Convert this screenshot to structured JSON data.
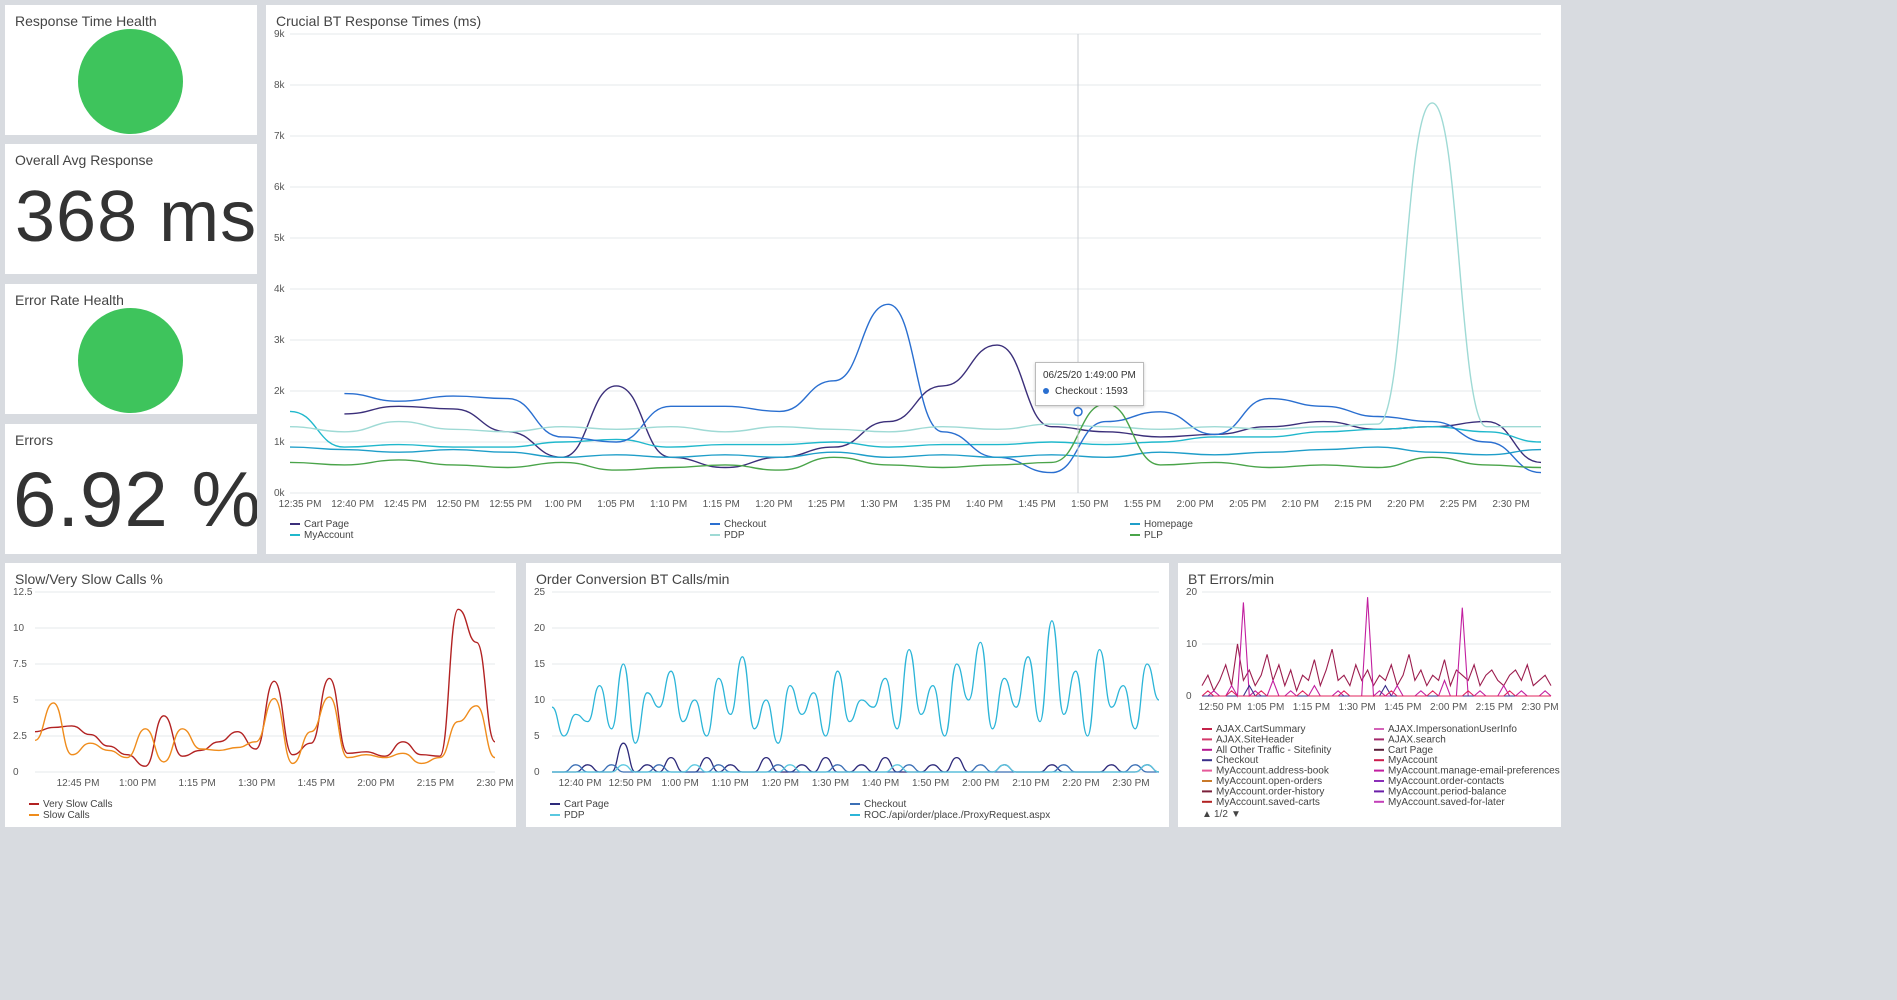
{
  "panels": {
    "response_time_health": {
      "title": "Response Time Health",
      "status_color": "#3ec45c"
    },
    "overall_avg_response": {
      "title": "Overall Avg Response",
      "value": "368 ms"
    },
    "error_rate_health": {
      "title": "Error Rate Health",
      "status_color": "#3ec45c"
    },
    "errors": {
      "title": "Errors",
      "value": "6.92 %"
    }
  },
  "chart_data": [
    {
      "id": "crucial",
      "type": "line",
      "title": "Crucial BT Response Times (ms)",
      "y_ticks": [
        "0k",
        "1k",
        "2k",
        "3k",
        "4k",
        "5k",
        "6k",
        "7k",
        "8k",
        "9k"
      ],
      "ylim": [
        0,
        9000
      ],
      "x_ticks": [
        "12:35 PM",
        "12:40 PM",
        "12:45 PM",
        "12:50 PM",
        "12:55 PM",
        "1:00 PM",
        "1:05 PM",
        "1:10 PM",
        "1:15 PM",
        "1:20 PM",
        "1:25 PM",
        "1:30 PM",
        "1:35 PM",
        "1:40 PM",
        "1:45 PM",
        "1:50 PM",
        "1:55 PM",
        "2:00 PM",
        "2:05 PM",
        "2:10 PM",
        "2:15 PM",
        "2:20 PM",
        "2:25 PM",
        "2:30 PM"
      ],
      "x": [
        0,
        5,
        10,
        15,
        20,
        25,
        30,
        35,
        40,
        45,
        50,
        55,
        60,
        65,
        70,
        75,
        80,
        85,
        90,
        95,
        100,
        105,
        110,
        115
      ],
      "legend": [
        "Cart Page",
        "MyAccount",
        "Checkout",
        "PDP",
        "Homepage",
        "PLP"
      ],
      "tooltip": {
        "time": "06/25/20 1:49:00 PM",
        "series": "Checkout",
        "value": "1593"
      },
      "series": [
        {
          "name": "Cart Page",
          "color": "#3b2f7a",
          "values": [
            null,
            1550,
            1700,
            1650,
            1200,
            700,
            2100,
            700,
            500,
            700,
            900,
            1400,
            2100,
            2900,
            1300,
            1200,
            1100,
            1150,
            1300,
            1400,
            1250,
            1300,
            1400,
            600
          ]
        },
        {
          "name": "MyAccount",
          "color": "#20b8cc",
          "values": [
            1600,
            900,
            950,
            900,
            900,
            1000,
            1050,
            900,
            950,
            950,
            1000,
            900,
            950,
            950,
            1000,
            950,
            1000,
            1100,
            1100,
            1200,
            1250,
            1300,
            1200,
            1000
          ]
        },
        {
          "name": "Checkout",
          "color": "#2a6fd0",
          "values": [
            null,
            1950,
            1800,
            1900,
            1850,
            1100,
            1000,
            1700,
            1700,
            1600,
            2200,
            3700,
            1200,
            700,
            400,
            1400,
            1593,
            1150,
            1850,
            1700,
            1500,
            1400,
            1000,
            400
          ]
        },
        {
          "name": "PDP",
          "color": "#9fdad5",
          "values": [
            1300,
            1200,
            1400,
            1250,
            1200,
            1300,
            1250,
            1300,
            1200,
            1300,
            1250,
            1200,
            1300,
            1250,
            1350,
            1300,
            1250,
            1300,
            1250,
            1300,
            1350,
            7650,
            1300,
            1300
          ]
        },
        {
          "name": "Homepage",
          "color": "#1f9ec9",
          "values": [
            900,
            850,
            800,
            850,
            800,
            700,
            750,
            700,
            750,
            700,
            800,
            700,
            750,
            700,
            750,
            700,
            800,
            750,
            800,
            850,
            900,
            800,
            750,
            850
          ]
        },
        {
          "name": "PLP",
          "color": "#4aa44a",
          "values": [
            600,
            550,
            650,
            550,
            500,
            600,
            450,
            500,
            550,
            450,
            700,
            550,
            500,
            550,
            600,
            1750,
            550,
            600,
            500,
            550,
            500,
            700,
            550,
            500
          ]
        }
      ]
    },
    {
      "id": "slow",
      "type": "line",
      "title": "Slow/Very Slow Calls %",
      "y_ticks": [
        "0",
        "2.5",
        "5",
        "7.5",
        "10",
        "12.5"
      ],
      "ylim": [
        0,
        12.5
      ],
      "x_ticks": [
        "12:45 PM",
        "1:00 PM",
        "1:15 PM",
        "1:30 PM",
        "1:45 PM",
        "2:00 PM",
        "2:15 PM",
        "2:30 PM"
      ],
      "legend": [
        "Very Slow Calls",
        "Slow Calls"
      ],
      "series": [
        {
          "name": "Very Slow Calls",
          "color": "#b22222",
          "values": [
            2.8,
            3.1,
            3.2,
            2.6,
            1.8,
            1.2,
            0.4,
            3.9,
            1.1,
            1.5,
            2.1,
            2.8,
            1.6,
            6.3,
            1.2,
            2.0,
            6.5,
            1.3,
            1.4,
            1.1,
            2.1,
            1.2,
            1.1,
            11.3,
            9.0,
            2.1
          ]
        },
        {
          "name": "Slow Calls",
          "color": "#ef8c1c",
          "values": [
            2.2,
            4.8,
            1.2,
            2.0,
            1.5,
            1.0,
            3.0,
            0.7,
            3.0,
            1.6,
            1.5,
            1.7,
            2.1,
            5.1,
            0.6,
            2.8,
            5.2,
            1.0,
            1.2,
            1.0,
            1.3,
            0.6,
            1.0,
            3.5,
            4.6,
            1.0
          ]
        }
      ]
    },
    {
      "id": "orders",
      "type": "line",
      "title": "Order Conversion BT Calls/min",
      "y_ticks": [
        "0",
        "5",
        "10",
        "15",
        "20",
        "25"
      ],
      "ylim": [
        0,
        25
      ],
      "x_ticks": [
        "12:40 PM",
        "12:50 PM",
        "1:00 PM",
        "1:10 PM",
        "1:20 PM",
        "1:30 PM",
        "1:40 PM",
        "1:50 PM",
        "2:00 PM",
        "2:10 PM",
        "2:20 PM",
        "2:30 PM"
      ],
      "legend": [
        "Cart Page",
        "PDP",
        "Checkout",
        "ROC./api/order/place./ProxyRequest.aspx"
      ],
      "series": [
        {
          "name": "ROC./api/order/place./ProxyRequest.aspx",
          "color": "#2cb5d8",
          "values": [
            9,
            5,
            8,
            7,
            12,
            6,
            15,
            4,
            11,
            9,
            14,
            7,
            10,
            5,
            13,
            8,
            16,
            6,
            10,
            4,
            12,
            8,
            11,
            5,
            14,
            7,
            10,
            9,
            13,
            6,
            17,
            8,
            12,
            5,
            15,
            10,
            18,
            6,
            13,
            9,
            16,
            7,
            21,
            8,
            14,
            5,
            17,
            9,
            12,
            6,
            15,
            10
          ]
        },
        {
          "name": "Cart Page",
          "color": "#2d2a7a",
          "values": [
            0,
            0,
            0,
            1,
            0,
            0,
            4,
            0,
            1,
            0,
            2,
            0,
            0,
            2,
            0,
            1,
            0,
            0,
            2,
            0,
            0,
            1,
            0,
            2,
            0,
            0,
            1,
            0,
            2,
            0,
            0,
            0,
            1,
            0,
            2,
            0,
            0,
            0,
            1,
            0,
            0,
            0,
            1,
            0,
            0,
            0,
            0,
            1,
            0,
            0,
            1,
            0
          ]
        },
        {
          "name": "Checkout",
          "color": "#3b6fb5",
          "values": [
            0,
            0,
            1,
            0,
            0,
            1,
            0,
            0,
            0,
            1,
            0,
            0,
            0,
            0,
            1,
            0,
            0,
            0,
            0,
            1,
            0,
            0,
            0,
            0,
            1,
            0,
            0,
            0,
            0,
            0,
            1,
            0,
            0,
            0,
            0,
            0,
            1,
            0,
            0,
            0,
            0,
            0,
            0,
            1,
            0,
            0,
            0,
            0,
            0,
            1,
            0,
            0
          ]
        },
        {
          "name": "PDP",
          "color": "#5ac8e0",
          "values": [
            0,
            0,
            0,
            0,
            0,
            0,
            1,
            0,
            0,
            0,
            0,
            0,
            1,
            0,
            0,
            0,
            0,
            0,
            0,
            0,
            1,
            0,
            0,
            0,
            0,
            0,
            0,
            0,
            0,
            1,
            0,
            0,
            0,
            0,
            0,
            0,
            0,
            0,
            1,
            0,
            0,
            0,
            0,
            0,
            0,
            0,
            0,
            0,
            0,
            0,
            1,
            0
          ]
        }
      ]
    },
    {
      "id": "bterr",
      "type": "line",
      "title": "BT Errors/min",
      "y_ticks": [
        "0",
        "10",
        "20"
      ],
      "ylim": [
        0,
        20
      ],
      "x_ticks": [
        "12:50 PM",
        "1:05 PM",
        "1:15 PM",
        "1:30 PM",
        "1:45 PM",
        "2:00 PM",
        "2:15 PM",
        "2:30 PM"
      ],
      "legend": [
        "AJAX.CartSummary",
        "AJAX.SiteHeader",
        "All Other Traffic - Sitefinity",
        "Checkout",
        "MyAccount.address-book",
        "MyAccount.open-orders",
        "MyAccount.order-history",
        "MyAccount.saved-carts",
        "AJAX.ImpersonationUserInfo",
        "AJAX.search",
        "Cart Page",
        "MyAccount",
        "MyAccount.manage-email-preferences",
        "MyAccount.order-contacts",
        "MyAccount.period-balance",
        "MyAccount.saved-for-later"
      ],
      "legend_colors": [
        "#c4234a",
        "#d43a6b",
        "#b5178f",
        "#3a2f8a",
        "#e65a9a",
        "#c97a2a",
        "#7a1f3a",
        "#b22222",
        "#d463b8",
        "#a4286a",
        "#5a1f3a",
        "#cc1c4c",
        "#c21fa0",
        "#8a2fb8",
        "#6a1fa8",
        "#c33fb8"
      ],
      "pager": "1/2",
      "series": [
        {
          "name": "AJAX.CartSummary",
          "color": "#9c1e4f",
          "values": [
            2,
            4,
            1,
            3,
            6,
            2,
            10,
            3,
            5,
            2,
            4,
            8,
            3,
            6,
            2,
            5,
            1,
            4,
            3,
            7,
            2,
            5,
            9,
            3,
            4,
            2,
            6,
            3,
            5,
            2,
            4,
            3,
            6,
            2,
            4,
            8,
            3,
            5,
            2,
            4,
            3,
            7,
            2,
            5,
            4,
            3,
            6,
            2,
            4,
            5,
            3,
            2,
            4,
            5,
            3,
            6,
            2,
            3,
            4,
            2
          ]
        },
        {
          "name": "All Other Traffic - Sitefinity",
          "color": "#c21fa0",
          "values": [
            0,
            0,
            1,
            0,
            0,
            2,
            0,
            18,
            0,
            1,
            0,
            0,
            3,
            0,
            0,
            1,
            0,
            0,
            0,
            2,
            0,
            0,
            0,
            1,
            0,
            0,
            0,
            0,
            19,
            0,
            1,
            0,
            0,
            2,
            0,
            0,
            0,
            1,
            0,
            0,
            0,
            3,
            0,
            0,
            17,
            0,
            0,
            1,
            0,
            0,
            0,
            2,
            0,
            0,
            1,
            0,
            0,
            0,
            1,
            0
          ]
        },
        {
          "name": "Checkout",
          "color": "#3a2f8a",
          "values": [
            0,
            0,
            0,
            0,
            0,
            0,
            0,
            0,
            2,
            0,
            0,
            0,
            0,
            0,
            0,
            0,
            0,
            0,
            0,
            0,
            0,
            0,
            0,
            0,
            0,
            0,
            0,
            0,
            0,
            0,
            0,
            2,
            0,
            0,
            0,
            0,
            0,
            0,
            0,
            0,
            0,
            0,
            0,
            0,
            0,
            0,
            0,
            0,
            0,
            0,
            0,
            0,
            0,
            0,
            0,
            0,
            0,
            0,
            0,
            0
          ]
        },
        {
          "name": "MyAccount",
          "color": "#e0245e",
          "values": [
            0,
            1,
            0,
            0,
            0,
            1,
            0,
            0,
            0,
            0,
            1,
            0,
            0,
            0,
            0,
            0,
            0,
            1,
            0,
            0,
            0,
            0,
            0,
            0,
            1,
            0,
            0,
            0,
            0,
            0,
            0,
            0,
            1,
            0,
            0,
            0,
            0,
            0,
            0,
            1,
            0,
            0,
            0,
            0,
            0,
            1,
            0,
            0,
            0,
            0,
            0,
            0,
            1,
            0,
            0,
            0,
            0,
            0,
            0,
            0
          ]
        }
      ]
    }
  ]
}
